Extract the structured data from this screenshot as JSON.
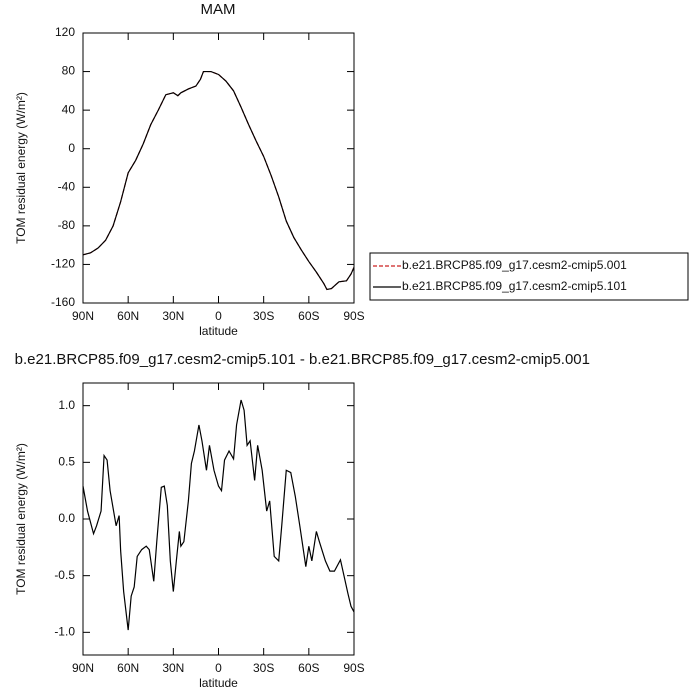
{
  "chart_data": [
    {
      "type": "line",
      "title": "MAM",
      "xlabel": "latitude",
      "ylabel": "TOM residual energy (W/m²)",
      "x": [
        90,
        85,
        80,
        75,
        70,
        65,
        60,
        55,
        50,
        45,
        40,
        35,
        30,
        27,
        25,
        20,
        15,
        12,
        10,
        5,
        0,
        -5,
        -10,
        -15,
        -20,
        -25,
        -30,
        -35,
        -40,
        -45,
        -50,
        -55,
        -60,
        -65,
        -70,
        -72,
        -75,
        -80,
        -85,
        -88,
        -90
      ],
      "series": [
        {
          "name": "b.e21.BRCP85.f09_g17.cesm2-cmip5.001",
          "color": "#cc2222",
          "dashed": true,
          "values": [
            -110,
            -108,
            -103,
            -95,
            -80,
            -55,
            -25,
            -12,
            5,
            25,
            40,
            56,
            58,
            55,
            58,
            62,
            65,
            72,
            80,
            80,
            77,
            70,
            60,
            43,
            25,
            8,
            -8,
            -28,
            -50,
            -75,
            -92,
            -105,
            -117,
            -128,
            -140,
            -146,
            -145,
            -138,
            -137,
            -130,
            -123
          ]
        },
        {
          "name": "b.e21.BRCP85.f09_g17.cesm2-cmip5.101",
          "color": "#000000",
          "dashed": false,
          "values": [
            -110,
            -108,
            -103,
            -95,
            -80,
            -55,
            -25,
            -12,
            5,
            25,
            40,
            56,
            58,
            55,
            58,
            62,
            65,
            72,
            80,
            80,
            77,
            70,
            60,
            43,
            25,
            8,
            -8,
            -28,
            -50,
            -75,
            -92,
            -105,
            -117,
            -128,
            -140,
            -146,
            -145,
            -138,
            -137,
            -130,
            -123
          ]
        }
      ],
      "xlim": [
        90,
        -90
      ],
      "xticks": [
        {
          "value": 90,
          "label": "90N"
        },
        {
          "value": 60,
          "label": "60N"
        },
        {
          "value": 30,
          "label": "30N"
        },
        0,
        {
          "value": -30,
          "label": "30S"
        },
        {
          "value": -60,
          "label": "60S"
        },
        {
          "value": -90,
          "label": "90S"
        }
      ],
      "ylim": [
        -160,
        120
      ],
      "yticks": [
        -160,
        -120,
        -80,
        -40,
        0,
        40,
        80,
        120
      ],
      "legend": "right"
    },
    {
      "type": "line",
      "title": "b.e21.BRCP85.f09_g17.cesm2-cmip5.101 - b.e21.BRCP85.f09_g17.cesm2-cmip5.001",
      "xlabel": "latitude",
      "ylabel": "TOM residual energy (W/m²)",
      "x": [
        90,
        87,
        83,
        81,
        78,
        76,
        74,
        72,
        68,
        66,
        65,
        63,
        60,
        58,
        56,
        54,
        51,
        48,
        46,
        43,
        41,
        38,
        36,
        34,
        32,
        30,
        28,
        26,
        25,
        23,
        20,
        18,
        16,
        13,
        11,
        8,
        6,
        3,
        0,
        -2,
        -4,
        -7,
        -10,
        -12,
        -15,
        -17,
        -19,
        -21,
        -24,
        -26,
        -29,
        -32,
        -34,
        -37,
        -40,
        -42,
        -45,
        -48,
        -51,
        -54,
        -58,
        -60,
        -62,
        -65,
        -67,
        -71,
        -74,
        -77,
        -81,
        -83,
        -86,
        -88,
        -90
      ],
      "series": [
        {
          "color": "#000000",
          "dashed": false,
          "values": [
            0.29,
            0.07,
            -0.13,
            -0.06,
            0.07,
            0.56,
            0.52,
            0.25,
            -0.06,
            0.03,
            -0.28,
            -0.64,
            -0.98,
            -0.68,
            -0.6,
            -0.33,
            -0.27,
            -0.24,
            -0.27,
            -0.55,
            -0.2,
            0.28,
            0.29,
            0.12,
            -0.37,
            -0.64,
            -0.37,
            -0.11,
            -0.24,
            -0.2,
            0.16,
            0.49,
            0.6,
            0.83,
            0.69,
            0.43,
            0.65,
            0.43,
            0.29,
            0.25,
            0.52,
            0.6,
            0.53,
            0.83,
            1.05,
            0.96,
            0.65,
            0.69,
            0.34,
            0.65,
            0.43,
            0.07,
            0.16,
            -0.33,
            -0.37,
            -0.06,
            0.43,
            0.41,
            0.2,
            -0.06,
            -0.42,
            -0.24,
            -0.37,
            -0.11,
            -0.2,
            -0.37,
            -0.46,
            -0.46,
            -0.36,
            -0.48,
            -0.66,
            -0.77,
            -0.82
          ]
        }
      ],
      "xlim": [
        90,
        -90
      ],
      "xticks": [
        {
          "value": 90,
          "label": "90N"
        },
        {
          "value": 60,
          "label": "60N"
        },
        {
          "value": 30,
          "label": "30N"
        },
        0,
        {
          "value": -30,
          "label": "30S"
        },
        {
          "value": -60,
          "label": "60S"
        },
        {
          "value": -90,
          "label": "90S"
        }
      ],
      "ylim": [
        -1.2,
        1.2
      ],
      "yticks": [
        {
          "value": -1.0,
          "label": "-1.0"
        },
        {
          "value": -0.5,
          "label": "-0.5"
        },
        {
          "value": 0,
          "label": "0.0"
        },
        {
          "value": 0.5,
          "label": "0.5"
        },
        {
          "value": 1.0,
          "label": "1.0"
        }
      ]
    }
  ]
}
